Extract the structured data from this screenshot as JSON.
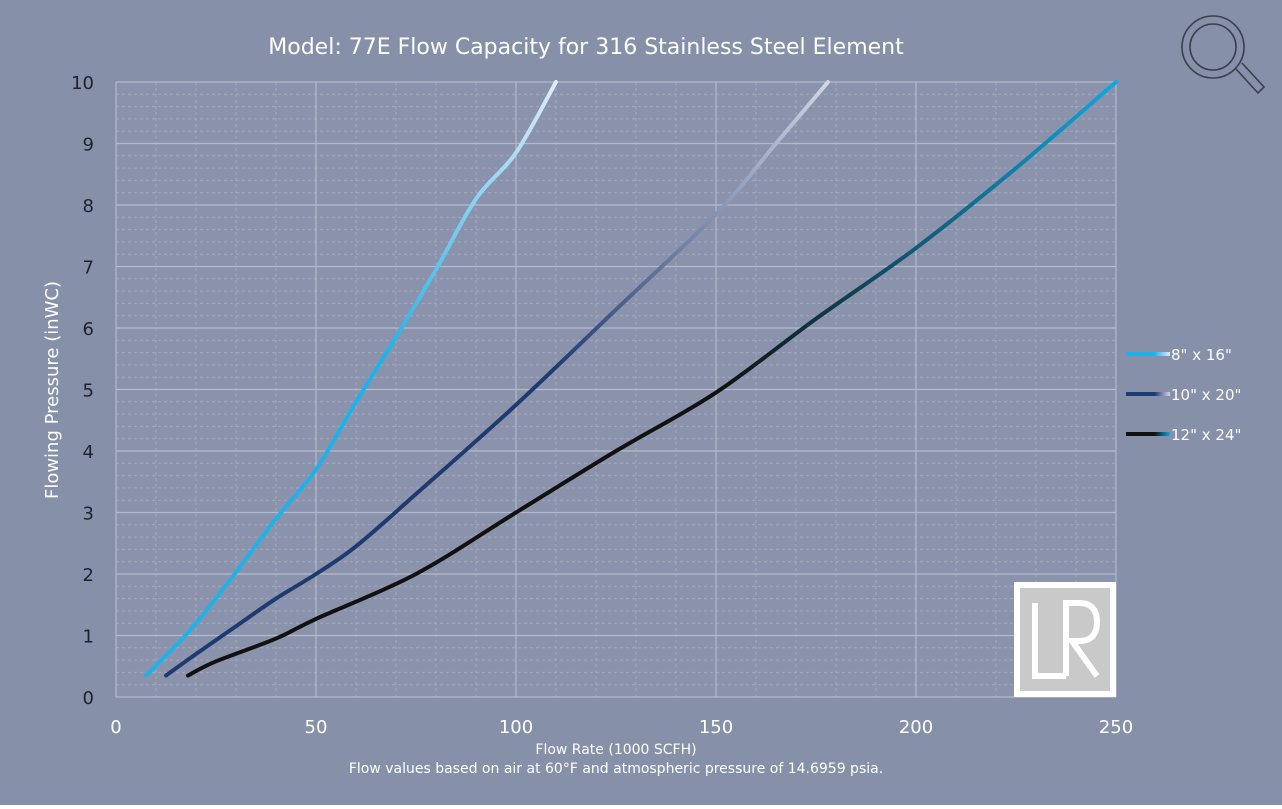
{
  "colors": {
    "background": "#8690a8",
    "plot_background": "#8a93ab",
    "grid_major": "#b3bacc",
    "grid_minor": "#a2a9bd",
    "text": "#ffffff",
    "text_dark": "#1e2230"
  },
  "icons": {
    "search": "magnifier-icon",
    "logo": "lr-logo"
  },
  "chart_data": {
    "type": "line",
    "title": "Model: 77E Flow Capacity for 316 Stainless Steel Element",
    "xlabel": "Flow Rate (1000 SCFH)",
    "ylabel": "Flowing Pressure (inWC)",
    "footnote": "Flow values based on air at 60°F and atmospheric pressure of 14.6959 psia.",
    "xlim": [
      0,
      250
    ],
    "ylim": [
      0,
      10
    ],
    "x_ticks": [
      0,
      50,
      100,
      150,
      200,
      250
    ],
    "x_tick_labels": [
      "0",
      "50",
      "100",
      "150",
      "200",
      "250"
    ],
    "y_ticks": [
      0,
      1,
      2,
      3,
      4,
      5,
      6,
      7,
      8,
      9,
      10
    ],
    "y_tick_labels": [
      "0",
      "1",
      "2",
      "3",
      "4",
      "5",
      "6",
      "7",
      "8",
      "9",
      "10"
    ],
    "grid": true,
    "minor_grid": true,
    "legend_position": "right",
    "series": [
      {
        "name": "8\" x 16\"",
        "color_start": "#1fb2ea",
        "color_end": "#dfecf7",
        "points": [
          [
            7.5,
            0.35
          ],
          [
            15,
            0.84
          ],
          [
            20,
            1.2
          ],
          [
            30,
            2.03
          ],
          [
            40,
            2.9
          ],
          [
            50,
            3.7
          ],
          [
            60,
            4.8
          ],
          [
            70,
            5.85
          ],
          [
            80,
            6.95
          ],
          [
            90,
            8.1
          ],
          [
            100,
            8.85
          ],
          [
            110,
            10.0
          ]
        ]
      },
      {
        "name": "10\" x 20\"",
        "color_start": "#1f3a70",
        "color_end": "#d2d6e6",
        "points": [
          [
            12.5,
            0.35
          ],
          [
            20,
            0.7
          ],
          [
            30,
            1.15
          ],
          [
            40,
            1.6
          ],
          [
            50,
            2.0
          ],
          [
            60,
            2.45
          ],
          [
            75,
            3.3
          ],
          [
            100,
            4.75
          ],
          [
            125,
            6.3
          ],
          [
            150,
            7.85
          ],
          [
            165,
            9.0
          ],
          [
            178,
            10.0
          ]
        ]
      },
      {
        "name": "12\" x 24\"",
        "color_start": "#111111",
        "color_end": "#0ea8e0",
        "points": [
          [
            18,
            0.35
          ],
          [
            25,
            0.58
          ],
          [
            40,
            0.95
          ],
          [
            50,
            1.27
          ],
          [
            75,
            2.0
          ],
          [
            100,
            3.0
          ],
          [
            125,
            4.0
          ],
          [
            150,
            4.95
          ],
          [
            175,
            6.15
          ],
          [
            200,
            7.3
          ],
          [
            225,
            8.6
          ],
          [
            250,
            10.0
          ]
        ]
      }
    ]
  }
}
